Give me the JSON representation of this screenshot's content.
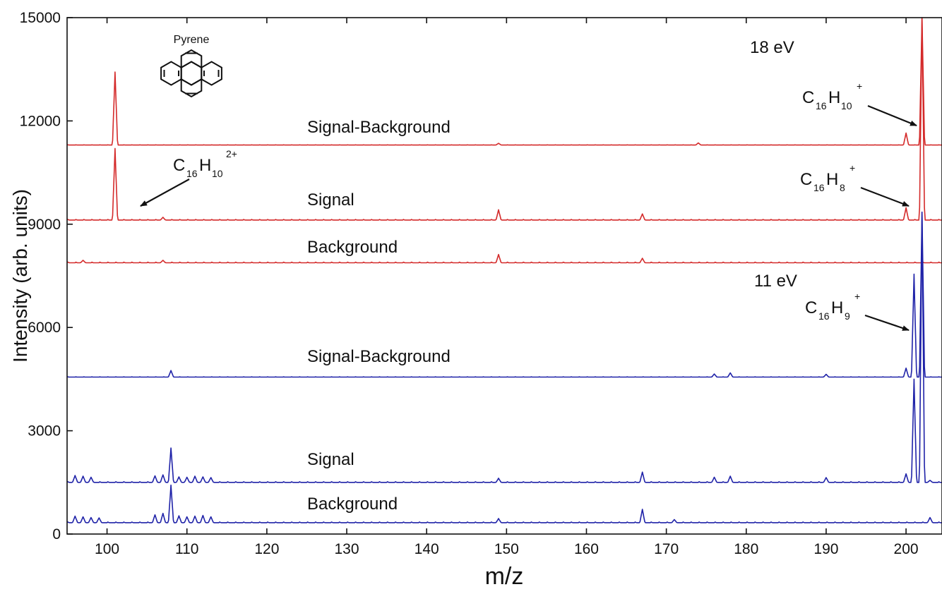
{
  "chart_data": {
    "type": "line",
    "xlabel": "m/z",
    "ylabel": "Intensity (arb. units)",
    "xlim": [
      95,
      204.5
    ],
    "ylim": [
      0,
      15000
    ],
    "x_ticks": [
      100,
      110,
      120,
      130,
      140,
      150,
      160,
      170,
      180,
      190,
      200
    ],
    "y_ticks": [
      0,
      3000,
      6000,
      9000,
      12000,
      15000
    ],
    "grid": false,
    "colors": {
      "red": "#d42a2a",
      "blue": "#1f22a8"
    },
    "annotations": {
      "energy_18": "18 eV",
      "energy_11": "11 eV",
      "molecule": "Pyrene",
      "ion_c16h10_plus": {
        "base1": "C",
        "sub1": "16",
        "base2": "H",
        "sub2": "10",
        "charge": "+"
      },
      "ion_c16h10_2plus": {
        "base1": "C",
        "sub1": "16",
        "base2": "H",
        "sub2": "10",
        "charge": "2+"
      },
      "ion_c16h8_plus": {
        "base1": "C",
        "sub1": "16",
        "base2": "H",
        "sub2": "8",
        "charge": "+"
      },
      "ion_c16h9_plus": {
        "base1": "C",
        "sub1": "16",
        "base2": "H",
        "sub2": "9",
        "charge": "+"
      }
    },
    "series": [
      {
        "name": "Signal-Background",
        "group": "18 eV",
        "color": "red",
        "baseline": 11300,
        "peaks": [
          [
            101,
            13420
          ],
          [
            149,
            11350
          ],
          [
            174,
            11360
          ],
          [
            200,
            11650
          ],
          [
            202,
            15000
          ]
        ]
      },
      {
        "name": "Signal",
        "group": "18 eV",
        "color": "red",
        "baseline": 9120,
        "peaks": [
          [
            101,
            11200
          ],
          [
            107,
            9200
          ],
          [
            149,
            9420
          ],
          [
            167,
            9300
          ],
          [
            200,
            9480
          ],
          [
            202,
            15000
          ]
        ]
      },
      {
        "name": "Background",
        "group": "18 eV",
        "color": "red",
        "baseline": 7880,
        "peaks": [
          [
            97,
            7950
          ],
          [
            107,
            7950
          ],
          [
            149,
            8120
          ],
          [
            167,
            8010
          ]
        ]
      },
      {
        "name": "Signal-Background",
        "group": "11 eV",
        "color": "blue",
        "baseline": 4560,
        "peaks": [
          [
            108,
            4750
          ],
          [
            176,
            4650
          ],
          [
            178,
            4680
          ],
          [
            190,
            4640
          ],
          [
            200,
            4820
          ],
          [
            201,
            7550
          ],
          [
            202,
            9350
          ]
        ]
      },
      {
        "name": "Signal",
        "group": "11 eV",
        "color": "blue",
        "baseline": 1500,
        "peaks": [
          [
            96,
            1700
          ],
          [
            97,
            1680
          ],
          [
            98,
            1650
          ],
          [
            106,
            1690
          ],
          [
            107,
            1720
          ],
          [
            108,
            2500
          ],
          [
            109,
            1660
          ],
          [
            110,
            1650
          ],
          [
            111,
            1680
          ],
          [
            112,
            1660
          ],
          [
            113,
            1640
          ],
          [
            149,
            1620
          ],
          [
            167,
            1800
          ],
          [
            176,
            1650
          ],
          [
            178,
            1680
          ],
          [
            190,
            1640
          ],
          [
            200,
            1750
          ],
          [
            201,
            4500
          ],
          [
            202,
            9350
          ],
          [
            203,
            1560
          ]
        ]
      },
      {
        "name": "Background",
        "group": "11 eV",
        "color": "blue",
        "baseline": 330,
        "peaks": [
          [
            96,
            520
          ],
          [
            97,
            500
          ],
          [
            98,
            480
          ],
          [
            99,
            470
          ],
          [
            106,
            560
          ],
          [
            107,
            600
          ],
          [
            108,
            1420
          ],
          [
            109,
            530
          ],
          [
            110,
            500
          ],
          [
            111,
            520
          ],
          [
            112,
            540
          ],
          [
            113,
            500
          ],
          [
            149,
            450
          ],
          [
            167,
            720
          ],
          [
            171,
            420
          ],
          [
            203,
            480
          ]
        ]
      }
    ]
  },
  "labels": {
    "red_diff": "Signal-Background",
    "red_signal": "Signal",
    "red_background": "Background",
    "blue_diff": "Signal-Background",
    "blue_signal": "Signal",
    "blue_background": "Background"
  }
}
